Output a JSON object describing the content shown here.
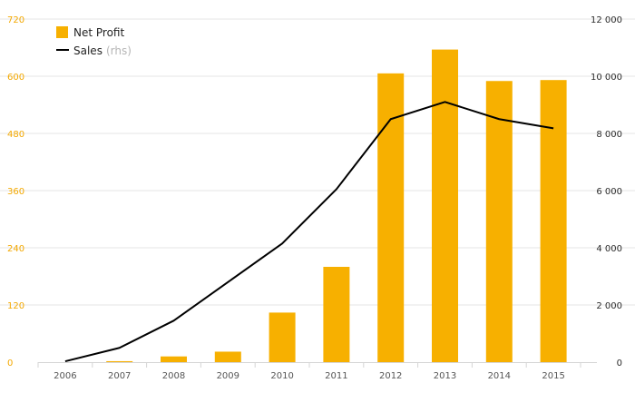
{
  "chart_data": {
    "type": "bar",
    "categories": [
      "2006",
      "2007",
      "2008",
      "2009",
      "2010",
      "2011",
      "2012",
      "2013",
      "2014",
      "2015"
    ],
    "series": [
      {
        "name": "Net Profit",
        "type": "bar",
        "axis": "left",
        "color": "#f7b000",
        "values": [
          0,
          2,
          12,
          22,
          104,
          200,
          606,
          656,
          590,
          592
        ]
      },
      {
        "name": "Sales",
        "name_suffix": "(rhs)",
        "type": "line",
        "axis": "right",
        "color": "#000000",
        "values": [
          30,
          500,
          1450,
          2800,
          4150,
          6050,
          8500,
          9100,
          8500,
          8180
        ]
      }
    ],
    "y_left": {
      "lim": [
        0,
        720
      ],
      "ticks": [
        0,
        120,
        240,
        360,
        480,
        600,
        720
      ],
      "tick_labels": [
        "0",
        "120",
        "240",
        "360",
        "480",
        "600",
        "720"
      ],
      "color": "#f3a800"
    },
    "y_right": {
      "lim": [
        0,
        12000
      ],
      "ticks": [
        0,
        2000,
        4000,
        6000,
        8000,
        10000,
        12000
      ],
      "tick_labels": [
        "0",
        "2 000",
        "4 000",
        "6 000",
        "8 000",
        "10 000",
        "12 000"
      ],
      "color": "#2b2b2b"
    },
    "grid": true,
    "legend": "top-left"
  }
}
